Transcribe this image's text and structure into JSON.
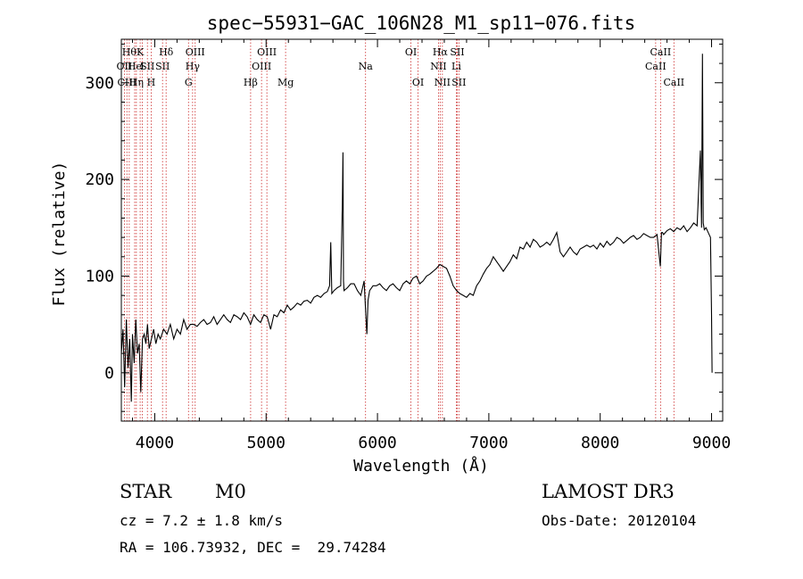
{
  "chart_data": {
    "type": "line",
    "title": "spec−55931−GAC_106N28_M1_sp11−076.fits",
    "xlabel": "Wavelength (Å)",
    "ylabel": "Flux (relative)",
    "xlim": [
      3700,
      9100
    ],
    "ylim": [
      -50,
      345
    ],
    "xticks": [
      4000,
      5000,
      6000,
      7000,
      8000,
      9000
    ],
    "yticks": [
      0,
      100,
      200,
      300
    ],
    "colors": {
      "axis": "#000000",
      "line": "#000000",
      "marker": "#cc2a2a"
    },
    "series": [
      {
        "name": "flux",
        "x": [
          3700,
          3715,
          3730,
          3745,
          3760,
          3775,
          3790,
          3800,
          3815,
          3830,
          3845,
          3860,
          3875,
          3890,
          3905,
          3920,
          3935,
          3950,
          3970,
          3990,
          4010,
          4030,
          4050,
          4080,
          4110,
          4140,
          4170,
          4200,
          4230,
          4260,
          4290,
          4320,
          4350,
          4380,
          4410,
          4440,
          4470,
          4500,
          4530,
          4560,
          4590,
          4620,
          4650,
          4680,
          4710,
          4740,
          4770,
          4800,
          4830,
          4860,
          4890,
          4920,
          4950,
          4980,
          5010,
          5040,
          5070,
          5100,
          5130,
          5160,
          5190,
          5220,
          5250,
          5280,
          5310,
          5340,
          5370,
          5400,
          5430,
          5460,
          5490,
          5520,
          5550,
          5570,
          5580,
          5590,
          5610,
          5640,
          5670,
          5685,
          5690,
          5695,
          5700,
          5730,
          5760,
          5790,
          5820,
          5850,
          5880,
          5895,
          5905,
          5915,
          5930,
          5960,
          5990,
          6020,
          6050,
          6080,
          6110,
          6140,
          6170,
          6200,
          6230,
          6260,
          6290,
          6320,
          6350,
          6380,
          6410,
          6440,
          6470,
          6500,
          6530,
          6560,
          6590,
          6620,
          6650,
          6680,
          6710,
          6740,
          6770,
          6800,
          6830,
          6860,
          6890,
          6920,
          6950,
          6980,
          7010,
          7040,
          7070,
          7100,
          7130,
          7160,
          7190,
          7220,
          7250,
          7280,
          7310,
          7340,
          7370,
          7400,
          7430,
          7460,
          7490,
          7520,
          7550,
          7580,
          7610,
          7640,
          7670,
          7700,
          7730,
          7760,
          7790,
          7820,
          7850,
          7880,
          7910,
          7940,
          7970,
          8000,
          8030,
          8060,
          8090,
          8120,
          8150,
          8180,
          8210,
          8240,
          8270,
          8300,
          8330,
          8360,
          8390,
          8420,
          8450,
          8480,
          8510,
          8540,
          8550,
          8560,
          8570,
          8600,
          8630,
          8660,
          8690,
          8720,
          8750,
          8780,
          8810,
          8840,
          8870,
          8900,
          8910,
          8918,
          8925,
          8935,
          8950,
          8970,
          8990,
          9000,
          9005
        ],
        "y": [
          20,
          45,
          -15,
          55,
          5,
          35,
          -30,
          40,
          10,
          55,
          20,
          30,
          -20,
          35,
          40,
          30,
          50,
          25,
          35,
          45,
          30,
          40,
          35,
          45,
          40,
          50,
          35,
          45,
          40,
          55,
          45,
          50,
          50,
          48,
          52,
          55,
          50,
          52,
          58,
          50,
          55,
          60,
          55,
          52,
          60,
          58,
          55,
          62,
          58,
          50,
          60,
          55,
          52,
          60,
          58,
          45,
          60,
          58,
          65,
          62,
          70,
          65,
          68,
          72,
          70,
          74,
          75,
          72,
          78,
          80,
          78,
          82,
          84,
          90,
          135,
          82,
          85,
          88,
          90,
          180,
          228,
          95,
          85,
          88,
          92,
          92,
          85,
          80,
          95,
          60,
          40,
          75,
          85,
          90,
          90,
          92,
          88,
          85,
          90,
          92,
          88,
          85,
          92,
          95,
          92,
          98,
          100,
          92,
          95,
          100,
          102,
          105,
          108,
          112,
          110,
          108,
          100,
          90,
          85,
          82,
          80,
          78,
          82,
          80,
          90,
          95,
          102,
          108,
          112,
          120,
          115,
          110,
          105,
          110,
          115,
          122,
          118,
          130,
          128,
          135,
          130,
          138,
          135,
          130,
          132,
          135,
          132,
          138,
          145,
          125,
          120,
          125,
          130,
          125,
          122,
          128,
          130,
          132,
          130,
          132,
          128,
          134,
          130,
          136,
          132,
          135,
          140,
          138,
          134,
          137,
          140,
          142,
          138,
          140,
          144,
          142,
          140,
          140,
          143,
          110,
          145,
          145,
          143,
          147,
          149,
          146,
          150,
          148,
          152,
          146,
          150,
          155,
          152,
          230,
          150,
          330,
          155,
          148,
          150,
          145,
          140,
          60,
          0
        ]
      }
    ],
    "lines": [
      {
        "wavelength": 3727,
        "label": "OII",
        "row": 2
      },
      {
        "wavelength": 3750,
        "label": "CIII",
        "row": 3
      },
      {
        "wavelength": 3771,
        "label": "Hθ",
        "row": 1
      },
      {
        "wavelength": 3820,
        "label": "He",
        "row": 2
      },
      {
        "wavelength": 3835,
        "label": "Hη",
        "row": 3
      },
      {
        "wavelength": 3869,
        "label": "K",
        "row": 1
      },
      {
        "wavelength": 3889,
        "label": "I",
        "row": 2
      },
      {
        "wavelength": 3934,
        "label": "SII",
        "row": 2
      },
      {
        "wavelength": 3968,
        "label": "H",
        "row": 3
      },
      {
        "wavelength": 4070,
        "label": "SII",
        "row": 2
      },
      {
        "wavelength": 4102,
        "label": "Hδ",
        "row": 1
      },
      {
        "wavelength": 4303,
        "label": "G",
        "row": 3
      },
      {
        "wavelength": 4340,
        "label": "Hγ",
        "row": 2
      },
      {
        "wavelength": 4363,
        "label": "OIII",
        "row": 1
      },
      {
        "wavelength": 4861,
        "label": "Hβ",
        "row": 3
      },
      {
        "wavelength": 4959,
        "label": "OIII",
        "row": 2
      },
      {
        "wavelength": 5007,
        "label": "OIII",
        "row": 1
      },
      {
        "wavelength": 5175,
        "label": "Mg",
        "row": 3
      },
      {
        "wavelength": 5893,
        "label": "Na",
        "row": 2
      },
      {
        "wavelength": 6300,
        "label": "OI",
        "row": 1
      },
      {
        "wavelength": 6364,
        "label": "OI",
        "row": 3
      },
      {
        "wavelength": 6548,
        "label": "NII",
        "row": 2
      },
      {
        "wavelength": 6563,
        "label": "Hα",
        "row": 1
      },
      {
        "wavelength": 6583,
        "label": "NII",
        "row": 3
      },
      {
        "wavelength": 6708,
        "label": "Li",
        "row": 2
      },
      {
        "wavelength": 6716,
        "label": "SII",
        "row": 1
      },
      {
        "wavelength": 6731,
        "label": "SII",
        "row": 3
      },
      {
        "wavelength": 8498,
        "label": "CaII",
        "row": 2
      },
      {
        "wavelength": 8542,
        "label": "CaII",
        "row": 1
      },
      {
        "wavelength": 8662,
        "label": "CaII",
        "row": 3
      }
    ]
  },
  "info": {
    "class_label": "STAR",
    "subclass_label": "M0",
    "survey_label": "LAMOST DR3",
    "cz_text": "cz = 7.2 ± 1.8 km/s",
    "obs_date_text": "Obs-Date: 20120104",
    "coords_text": "RA = 106.73932, DEC =  29.74284"
  }
}
